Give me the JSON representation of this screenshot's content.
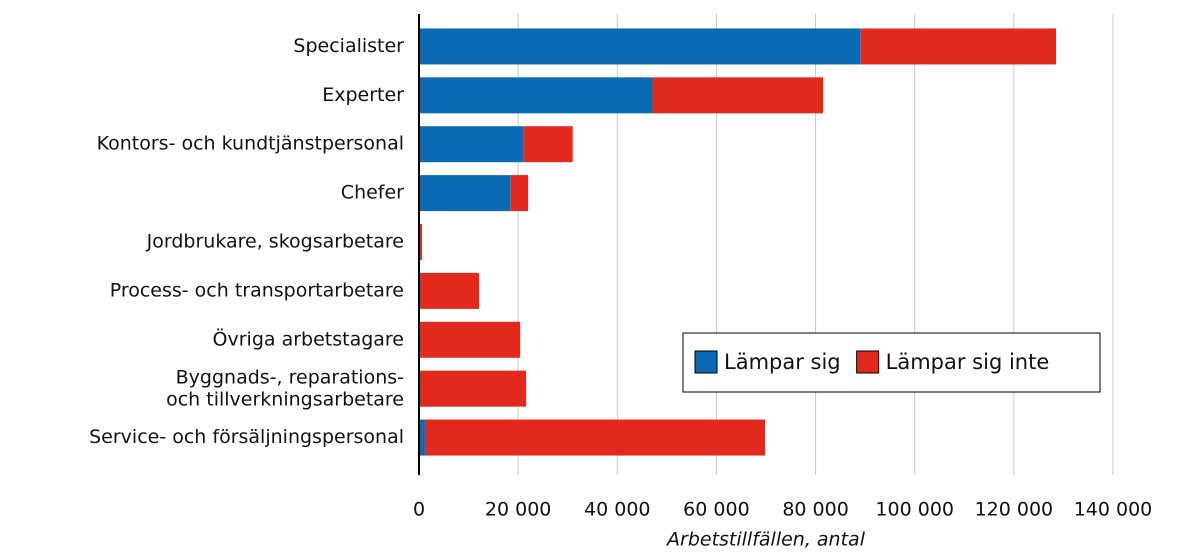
{
  "chart_data": {
    "type": "stacked_bar_horizontal",
    "x_label": "Arbetstillfällen, antal",
    "categories": [
      "Specialister",
      "Experter",
      "Kontors- och kundtjänstpersonal",
      "Chefer",
      "Jordbrukare, skogsarbetare",
      "Process- och transportarbetare",
      "Övriga arbetstagare",
      "Byggnads-, reparations-\noch tillverkningsarbetare",
      "Service- och försäljningspersonal"
    ],
    "series": [
      {
        "name": "Lämpar sig",
        "color": "#0a6ab4",
        "values": [
          89000,
          47000,
          21000,
          18400,
          0,
          0,
          0,
          0,
          1200
        ]
      },
      {
        "name": "Lämpar sig inte",
        "color": "#e1291e",
        "values": [
          39500,
          34500,
          10000,
          3600,
          600,
          12100,
          20400,
          21600,
          68600
        ]
      }
    ],
    "xlim": [
      0,
      140000
    ],
    "xticks": [
      0,
      {
        "value": 20000,
        "label": "20 000"
      },
      {
        "value": 40000,
        "label": "40 000"
      },
      {
        "value": 60000,
        "label": "60 000"
      },
      {
        "value": 80000,
        "label": "80 000"
      },
      {
        "value": 100000,
        "label": "100 000"
      },
      {
        "value": 120000,
        "label": "120 000"
      },
      {
        "value": 140000,
        "label": "140 000"
      }
    ],
    "grid": true,
    "legend_position": "lower right"
  }
}
